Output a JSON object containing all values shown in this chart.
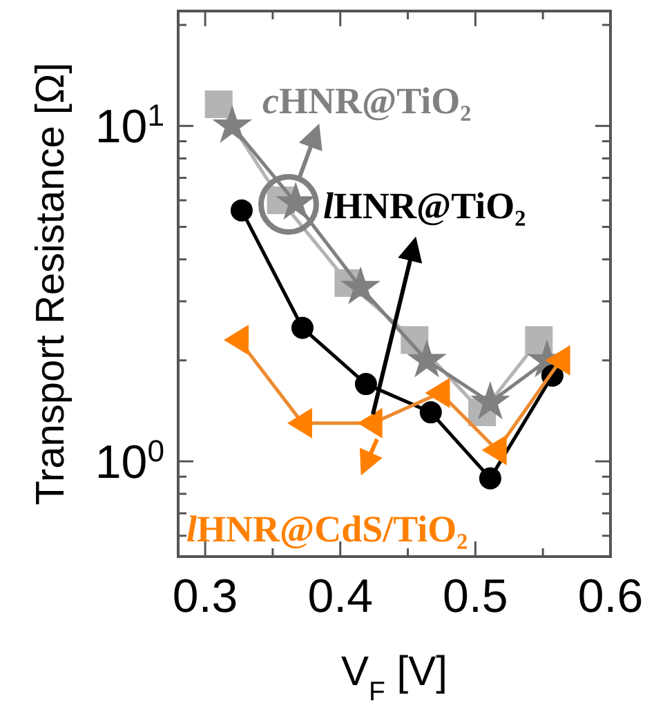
{
  "chart_data": {
    "type": "line",
    "xlabel": "V$_{F}$ [V]",
    "ylabel": "Transport Resistance [Ω]",
    "log": "y",
    "line_style": "solid",
    "xlim": [
      0.28,
      0.6
    ],
    "ylim": [
      0.52,
      22
    ],
    "xticks": [
      0.3,
      {
        "value": 0.35,
        "label": null
      },
      0.4,
      {
        "value": 0.45,
        "label": null
      },
      0.5,
      {
        "value": 0.55,
        "label": null
      },
      0.6
    ],
    "yticks": [
      {
        "value": 0.6,
        "label": null
      },
      {
        "value": 0.7,
        "label": null
      },
      {
        "value": 0.8,
        "label": null
      },
      {
        "value": 0.9,
        "label": null
      },
      {
        "value": 1,
        "label": "10$^{0}$"
      },
      {
        "value": 2,
        "label": null
      },
      {
        "value": 3,
        "label": null
      },
      {
        "value": 4,
        "label": null
      },
      {
        "value": 5,
        "label": null
      },
      {
        "value": 6,
        "label": null
      },
      {
        "value": 7,
        "label": null
      },
      {
        "value": 8,
        "label": null
      },
      {
        "value": 9,
        "label": null
      },
      {
        "value": 10,
        "label": "10$^{1}$"
      },
      {
        "value": 20,
        "label": null
      }
    ],
    "annotations": [
      "cHNR@TiO₂",
      "lHNR@TiO₂",
      "lHNR@CdS/TiO₂"
    ],
    "series": [
      {
        "color": "#b4b4b4",
        "marker": "square",
        "x": [
          0.31,
          0.356,
          0.406,
          0.455,
          0.505,
          0.547
        ],
        "values": [
          11.6,
          6.0,
          3.4,
          2.3,
          1.4,
          2.3
        ]
      },
      {
        "color": "#808080",
        "marker": "star",
        "x": [
          0.32,
          0.367,
          0.415,
          0.464,
          0.511,
          0.553
        ],
        "values": [
          10,
          5.9,
          3.3,
          2.0,
          1.5,
          2.0
        ]
      },
      {
        "color": "#000000",
        "marker": "circle",
        "x": [
          0.327,
          0.372,
          0.419,
          0.467,
          0.511,
          0.557
        ],
        "values": [
          5.6,
          2.5,
          1.7,
          1.4,
          0.89,
          1.8
        ]
      },
      {
        "color": "#ff8000",
        "marker": "triangle",
        "x": [
          0.325,
          0.372,
          0.424,
          0.474,
          0.516,
          0.563
        ],
        "values": [
          2.3,
          1.3,
          1.3,
          1.6,
          1.08,
          2.0
        ]
      }
    ]
  }
}
